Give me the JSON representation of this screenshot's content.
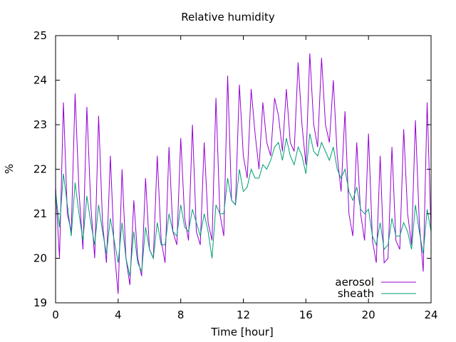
{
  "chart_data": {
    "type": "line",
    "title": "Relative humidity",
    "xlabel": "Time [hour]",
    "ylabel": "%",
    "xlim": [
      0,
      24
    ],
    "ylim": [
      19,
      25
    ],
    "xticks": [
      0,
      4,
      8,
      12,
      16,
      20,
      24
    ],
    "yticks": [
      19,
      20,
      21,
      22,
      23,
      24,
      25
    ],
    "grid": false,
    "legend_position": "bottom-right",
    "series": [
      {
        "name": "aerosol",
        "color": "#9400d3",
        "x": [
          0,
          0.25,
          0.5,
          0.75,
          1,
          1.25,
          1.5,
          1.75,
          2,
          2.25,
          2.5,
          2.75,
          3,
          3.25,
          3.5,
          3.75,
          4,
          4.25,
          4.5,
          4.75,
          5,
          5.25,
          5.5,
          5.75,
          6,
          6.25,
          6.5,
          6.75,
          7,
          7.25,
          7.5,
          7.75,
          8,
          8.25,
          8.5,
          8.75,
          9,
          9.25,
          9.5,
          9.75,
          10,
          10.25,
          10.5,
          10.75,
          11,
          11.25,
          11.5,
          11.75,
          12,
          12.25,
          12.5,
          12.75,
          13,
          13.25,
          13.5,
          13.75,
          14,
          14.25,
          14.5,
          14.75,
          15,
          15.25,
          15.5,
          15.75,
          16,
          16.25,
          16.5,
          16.75,
          17,
          17.25,
          17.5,
          17.75,
          18,
          18.25,
          18.5,
          18.75,
          19,
          19.25,
          19.5,
          19.75,
          20,
          20.25,
          20.5,
          20.75,
          21,
          21.25,
          21.5,
          21.75,
          22,
          22.25,
          22.5,
          22.75,
          23,
          23.25,
          23.5,
          23.75,
          24
        ],
        "y": [
          21.6,
          20.0,
          23.5,
          21.0,
          20.6,
          23.7,
          21.5,
          20.2,
          23.4,
          21.2,
          20.0,
          23.2,
          20.8,
          19.9,
          22.3,
          20.2,
          19.2,
          22.0,
          20.0,
          19.4,
          21.3,
          20.0,
          19.6,
          21.8,
          20.2,
          20.0,
          22.3,
          20.4,
          19.9,
          22.5,
          20.6,
          20.3,
          22.7,
          20.9,
          20.4,
          23.0,
          20.6,
          20.3,
          22.6,
          20.8,
          20.4,
          23.6,
          21.0,
          20.5,
          24.1,
          21.3,
          21.2,
          23.9,
          22.3,
          21.8,
          23.8,
          22.8,
          22.0,
          23.5,
          22.6,
          22.3,
          23.6,
          23.2,
          22.4,
          23.8,
          22.6,
          22.4,
          24.4,
          23.0,
          22.1,
          24.6,
          23.0,
          22.5,
          24.5,
          23.0,
          22.6,
          24.0,
          22.3,
          21.5,
          23.3,
          21.0,
          20.5,
          22.6,
          21.0,
          20.4,
          22.8,
          20.4,
          19.9,
          22.3,
          19.9,
          20.0,
          22.5,
          20.4,
          20.2,
          22.9,
          21.0,
          20.3,
          23.1,
          20.8,
          19.7,
          23.5,
          20.6
        ]
      },
      {
        "name": "sheath",
        "color": "#009e73",
        "x": [
          0,
          0.25,
          0.5,
          0.75,
          1,
          1.25,
          1.5,
          1.75,
          2,
          2.25,
          2.5,
          2.75,
          3,
          3.25,
          3.5,
          3.75,
          4,
          4.25,
          4.5,
          4.75,
          5,
          5.25,
          5.5,
          5.75,
          6,
          6.25,
          6.5,
          6.75,
          7,
          7.25,
          7.5,
          7.75,
          8,
          8.25,
          8.5,
          8.75,
          9,
          9.25,
          9.5,
          9.75,
          10,
          10.25,
          10.5,
          10.75,
          11,
          11.25,
          11.5,
          11.75,
          12,
          12.25,
          12.5,
          12.75,
          13,
          13.25,
          13.5,
          13.75,
          14,
          14.25,
          14.5,
          14.75,
          15,
          15.25,
          15.5,
          15.75,
          16,
          16.25,
          16.5,
          16.75,
          17,
          17.25,
          17.5,
          17.75,
          18,
          18.25,
          18.5,
          18.75,
          19,
          19.25,
          19.5,
          19.75,
          20,
          20.25,
          20.5,
          20.75,
          21,
          21.25,
          21.5,
          21.75,
          22,
          22.25,
          22.5,
          22.75,
          23,
          23.25,
          23.5,
          23.75,
          24
        ],
        "y": [
          21.5,
          20.7,
          21.9,
          21.2,
          20.5,
          21.7,
          21.0,
          20.4,
          21.4,
          20.8,
          20.3,
          21.2,
          20.6,
          20.1,
          20.9,
          20.4,
          19.9,
          20.8,
          20.0,
          19.6,
          20.6,
          19.9,
          19.7,
          20.7,
          20.2,
          20.0,
          20.8,
          20.3,
          20.3,
          21.0,
          20.6,
          20.5,
          21.2,
          20.7,
          20.6,
          21.1,
          20.8,
          20.5,
          21.0,
          20.6,
          20.0,
          21.2,
          21.0,
          21.0,
          21.8,
          21.3,
          21.2,
          22.0,
          21.5,
          21.6,
          22.0,
          21.8,
          21.8,
          22.1,
          22.0,
          22.2,
          22.5,
          22.6,
          22.2,
          22.7,
          22.3,
          22.1,
          22.5,
          22.3,
          21.9,
          22.8,
          22.4,
          22.3,
          22.6,
          22.4,
          22.2,
          22.5,
          22.0,
          21.8,
          22.0,
          21.5,
          21.3,
          21.6,
          21.1,
          21.0,
          21.1,
          20.5,
          20.3,
          20.8,
          20.2,
          20.3,
          20.9,
          20.5,
          20.5,
          20.8,
          20.6,
          20.2,
          21.2,
          20.6,
          20.1,
          21.1,
          20.6
        ]
      }
    ]
  }
}
